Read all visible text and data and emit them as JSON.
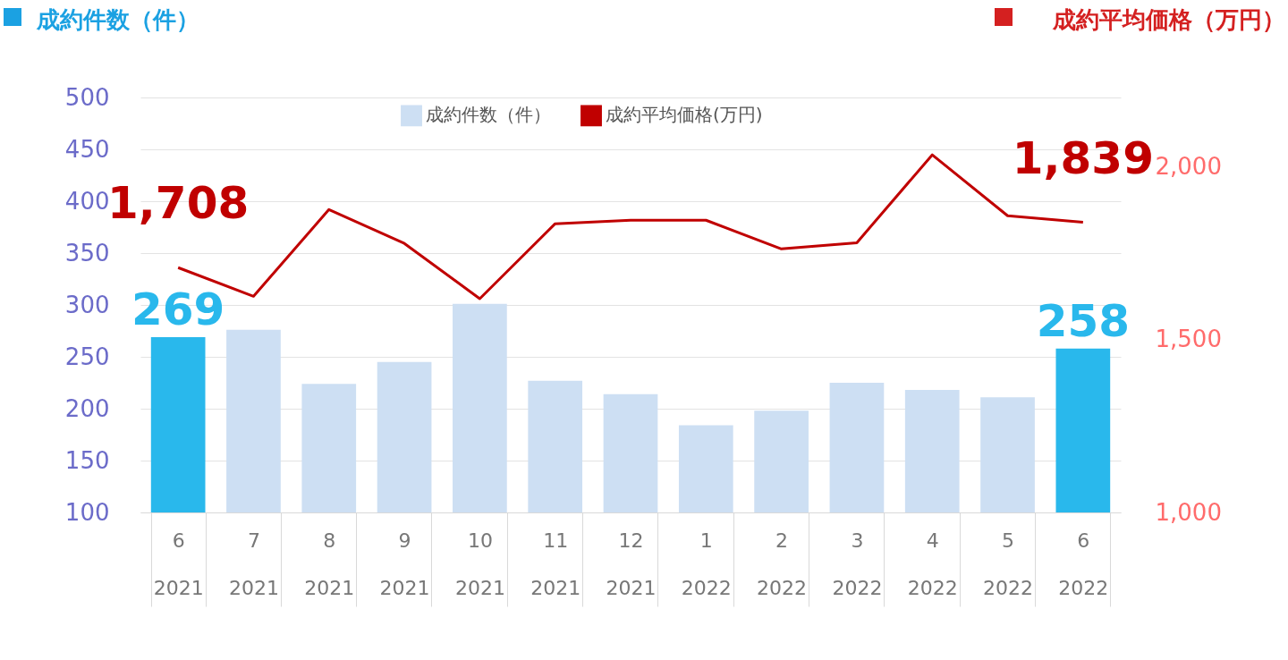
{
  "chart_data": {
    "type": "bar",
    "ylabel": "成約件数（件）",
    "y2label": "成約平均価格（万円）",
    "categories": [
      "6\n2021",
      "7\n2021",
      "8\n2021",
      "9\n2021",
      "10\n2021",
      "11\n2021",
      "12\n2021",
      "1\n2022",
      "2\n2022",
      "3\n2022",
      "4\n2022",
      "5\n2022",
      "6\n2022"
    ],
    "series": [
      {
        "name": "成約件数（件）",
        "color": "#cddff3",
        "colors": [
          "#29b8ec",
          "#cddff3",
          "#cddff3",
          "#cddff3",
          "#cddff3",
          "#cddff3",
          "#cddff3",
          "#cddff3",
          "#cddff3",
          "#cddff3",
          "#cddff3",
          "#cddff3",
          "#29b8ec"
        ],
        "values": [
          269,
          276,
          224,
          245,
          301,
          227,
          214,
          184,
          198,
          225,
          218,
          211,
          258
        ],
        "value_labels": [
          "269",
          null,
          null,
          null,
          null,
          null,
          null,
          null,
          null,
          null,
          null,
          null,
          "258"
        ]
      },
      {
        "name": "成約平均価格(万円)",
        "type": "line",
        "axis": "y2",
        "color": "#c00000",
        "values": [
          1708,
          1625,
          1876,
          1778,
          1618,
          1835,
          1845,
          1845,
          1762,
          1780,
          2034,
          1858,
          1839
        ],
        "value_labels": [
          "1,708",
          null,
          null,
          null,
          null,
          null,
          null,
          null,
          null,
          null,
          null,
          null,
          "1,839"
        ]
      }
    ],
    "ylim": [
      100,
      500
    ],
    "yticks": [
      100,
      150,
      200,
      250,
      300,
      350,
      400,
      450,
      500
    ],
    "y2lim": [
      1000,
      2200
    ],
    "y2ticks": [
      {
        "value": 1000,
        "label": "1,000"
      },
      {
        "value": 1500,
        "label": "1,500"
      },
      {
        "value": 2000,
        "label": "2,000"
      }
    ],
    "grid": "y",
    "legend": "top"
  }
}
